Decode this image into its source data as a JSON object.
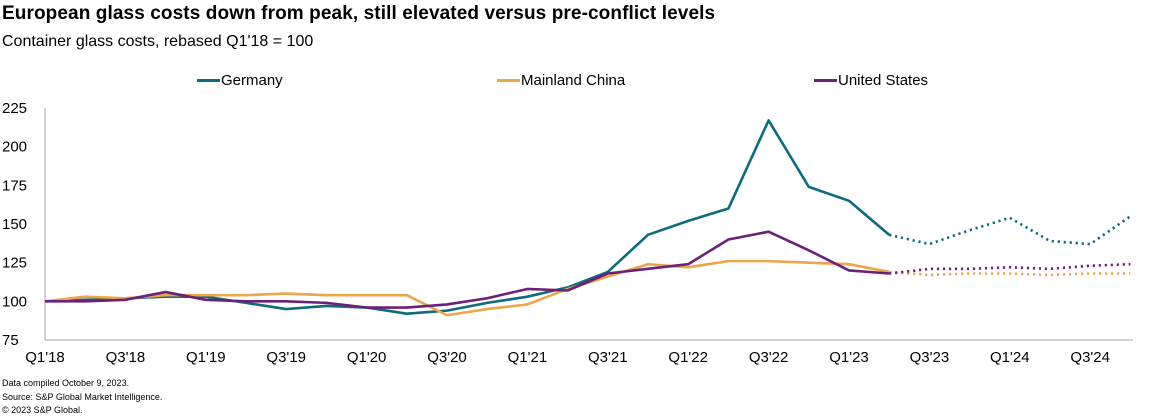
{
  "chart_data": {
    "type": "line",
    "title": "European glass costs down from peak, still elevated versus pre-conflict levels",
    "subtitle": "Container glass costs, rebased Q1'18 = 100",
    "xlabel": "",
    "ylabel": "",
    "ylim": [
      75,
      225
    ],
    "yticks": [
      75,
      100,
      125,
      150,
      175,
      200,
      225
    ],
    "grid": false,
    "legend_position": "top",
    "x": [
      "Q1'18",
      "Q2'18",
      "Q3'18",
      "Q4'18",
      "Q1'19",
      "Q2'19",
      "Q3'19",
      "Q4'19",
      "Q1'20",
      "Q2'20",
      "Q3'20",
      "Q4'20",
      "Q1'21",
      "Q2'21",
      "Q3'21",
      "Q4'21",
      "Q1'22",
      "Q2'22",
      "Q3'22",
      "Q4'22",
      "Q1'23",
      "Q2'23",
      "Q3'23",
      "Q4'23",
      "Q1'24",
      "Q2'24",
      "Q3'24",
      "Q4'24"
    ],
    "xtick_labels": [
      "Q1'18",
      "Q3'18",
      "Q1'19",
      "Q3'19",
      "Q1'20",
      "Q3'20",
      "Q1'21",
      "Q3'21",
      "Q1'22",
      "Q3'22",
      "Q1'23",
      "Q3'23",
      "Q1'24",
      "Q3'24"
    ],
    "forecast_start": "Q2'23",
    "series": [
      {
        "name": "Germany",
        "color": "#0e6a7d",
        "values": [
          100,
          101,
          102,
          103,
          103,
          99,
          95,
          97,
          96,
          92,
          94,
          99,
          103,
          109,
          119,
          143,
          152,
          160,
          217,
          174,
          165,
          143,
          137,
          146,
          154,
          139,
          137,
          155
        ]
      },
      {
        "name": "Mainland China",
        "color": "#eba54a",
        "values": [
          100,
          103,
          102,
          104,
          104,
          104,
          105,
          104,
          104,
          104,
          91,
          95,
          98,
          108,
          116,
          124,
          122,
          126,
          126,
          125,
          124,
          119,
          117,
          118,
          118,
          117,
          118,
          118
        ]
      },
      {
        "name": "United States",
        "color": "#6d2077",
        "values": [
          100,
          100,
          101,
          106,
          101,
          100,
          100,
          99,
          96,
          96,
          98,
          102,
          108,
          107,
          118,
          121,
          124,
          140,
          145,
          133,
          120,
          118,
          121,
          121,
          122,
          121,
          123,
          124
        ]
      }
    ]
  },
  "footnotes": [
    "Data compiled October 9, 2023.",
    "Source: S&P Global Market Intelligence.",
    "© 2023 S&P Global."
  ]
}
